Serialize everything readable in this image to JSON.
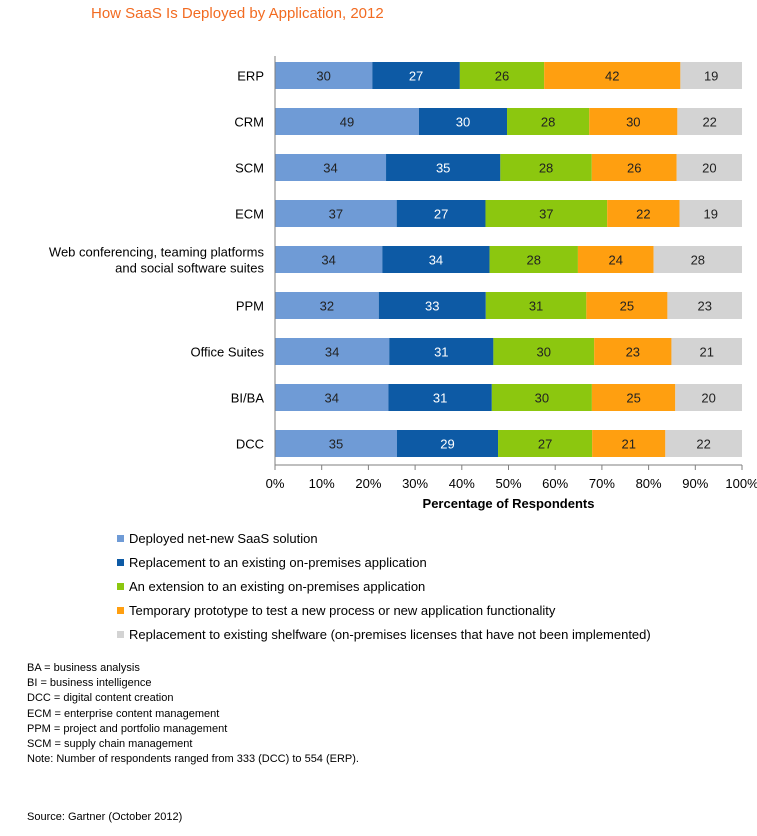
{
  "chart_data": {
    "type": "bar",
    "orientation": "horizontal",
    "stacked": "percent",
    "title": "How SaaS Is Deployed by Application, 2012",
    "xlabel": "Percentage of Respondents",
    "xlim": [
      0,
      100
    ],
    "xticks": [
      "0%",
      "10%",
      "20%",
      "30%",
      "40%",
      "50%",
      "60%",
      "70%",
      "80%",
      "90%",
      "100%"
    ],
    "categories": [
      [
        "ERP"
      ],
      [
        "CRM"
      ],
      [
        "SCM"
      ],
      [
        "ECM"
      ],
      [
        "Web conferencing, teaming platforms",
        "and social software suites"
      ],
      [
        "PPM"
      ],
      [
        "Office Suites"
      ],
      [
        "BI/BA"
      ],
      [
        "DCC"
      ]
    ],
    "series": [
      {
        "name": "Deployed net-new SaaS solution",
        "color": "#6f9bd6",
        "label_color": "#222222",
        "values": [
          30,
          49,
          34,
          37,
          34,
          32,
          34,
          34,
          35
        ]
      },
      {
        "name": "Replacement to an existing on-premises application",
        "color": "#0d5aa5",
        "label_color": "#ffffff",
        "values": [
          27,
          30,
          35,
          27,
          34,
          33,
          31,
          31,
          29
        ]
      },
      {
        "name": "An extension to an existing on-premises application",
        "color": "#8cc70f",
        "label_color": "#222222",
        "values": [
          26,
          28,
          28,
          37,
          28,
          31,
          30,
          30,
          27
        ]
      },
      {
        "name": "Temporary prototype to test a new process or new application functionality",
        "color": "#ff9f10",
        "label_color": "#222222",
        "values": [
          42,
          30,
          26,
          22,
          24,
          25,
          23,
          25,
          21
        ]
      },
      {
        "name": "Replacement to existing shelfware (on-premises licenses that have not been implemented)",
        "color": "#d3d3d3",
        "label_color": "#222222",
        "values": [
          19,
          22,
          20,
          19,
          28,
          23,
          21,
          20,
          22
        ]
      }
    ],
    "grid": false,
    "legend_position": "bottom"
  },
  "notes": [
    "BA = business analysis",
    "BI = business intelligence",
    "DCC = digital content creation",
    "ECM = enterprise content management",
    "PPM = project and portfolio management",
    "SCM = supply chain management",
    "Note: Number of respondents ranged from 333 (DCC) to 554 (ERP)."
  ],
  "source": "Source: Gartner (October 2012)"
}
